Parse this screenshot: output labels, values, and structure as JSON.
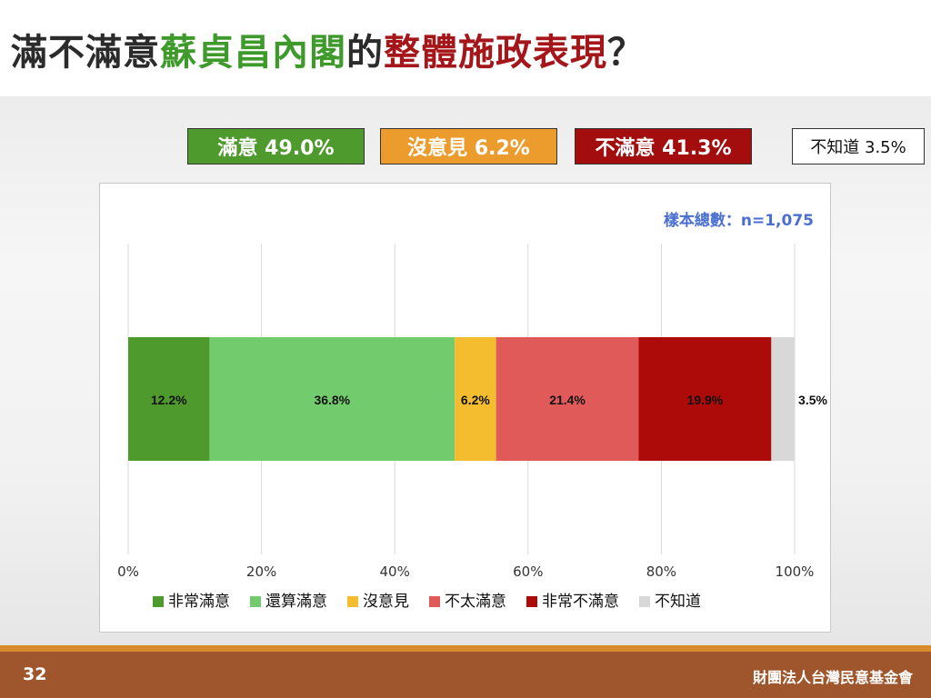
{
  "title": {
    "part1": "滿不滿意",
    "part2": "蘇貞昌內閣",
    "part3": "的",
    "part4": "整體施政表現",
    "part5": "？",
    "colors": {
      "dark": "#2b2b2b",
      "green": "#3f9a2c",
      "red": "#a4161a"
    }
  },
  "summary": {
    "satisfied": "滿意 49.0%",
    "neutral": "沒意見 6.2%",
    "dissatisfied": "不滿意 41.3%",
    "dont_know": "不知道 3.5%"
  },
  "sample_note": "樣本總數：n=1,075",
  "chart_data": {
    "type": "bar",
    "orientation": "horizontal-stacked-100",
    "series": [
      {
        "name": "非常滿意",
        "value": 12.2,
        "label": "12.2%",
        "color": "#4f9a2c"
      },
      {
        "name": "還算滿意",
        "value": 36.8,
        "label": "36.8%",
        "color": "#72cc6d"
      },
      {
        "name": "沒意見",
        "value": 6.2,
        "label": "6.2%",
        "color": "#f3bd2f"
      },
      {
        "name": "不太滿意",
        "value": 21.4,
        "label": "21.4%",
        "color": "#e05a5a"
      },
      {
        "name": "非常不滿意",
        "value": 19.9,
        "label": "19.9%",
        "color": "#ad0a0a"
      },
      {
        "name": "不知道",
        "value": 3.5,
        "label": "3.5%",
        "color": "#d8d8d8"
      }
    ],
    "xlim": [
      0,
      100
    ],
    "xticks": [
      "0%",
      "20%",
      "40%",
      "60%",
      "80%",
      "100%"
    ],
    "grid": true,
    "legend": "bottom"
  },
  "footer": {
    "page_number": "32",
    "organization": "財團法人台灣民意基金會"
  }
}
